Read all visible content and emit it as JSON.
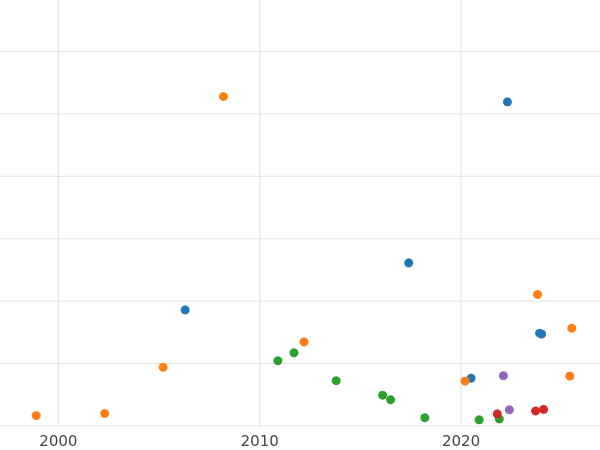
{
  "chart_data": {
    "type": "scatter",
    "title": "",
    "xlabel": "",
    "ylabel": "",
    "xlim": [
      1997.1,
      2026.9
    ],
    "ylim": [
      0,
      100
    ],
    "grid": true,
    "legend": "none",
    "x_ticks": [
      2000,
      2010,
      2020
    ],
    "x_tick_labels": [
      "2000",
      "2010",
      "2020"
    ],
    "y_grid_values": [
      0,
      15,
      30,
      45,
      60,
      75,
      90
    ],
    "series": [
      {
        "color": "#1f77b4",
        "points": [
          {
            "x": 2006.3,
            "y": 27.9
          },
          {
            "x": 2017.4,
            "y": 39.2
          },
          {
            "x": 2020.5,
            "y": 11.5
          },
          {
            "x": 2022.3,
            "y": 77.9
          },
          {
            "x": 2023.9,
            "y": 22.3
          },
          {
            "x": 2024.0,
            "y": 22.1
          }
        ]
      },
      {
        "color": "#ff7f0e",
        "points": [
          {
            "x": 1998.9,
            "y": 2.5
          },
          {
            "x": 2002.3,
            "y": 3.0
          },
          {
            "x": 2005.2,
            "y": 14.1
          },
          {
            "x": 2008.2,
            "y": 79.2
          },
          {
            "x": 2012.2,
            "y": 20.2
          },
          {
            "x": 2020.2,
            "y": 10.8
          },
          {
            "x": 2023.8,
            "y": 31.6
          },
          {
            "x": 2025.5,
            "y": 23.5
          },
          {
            "x": 2025.4,
            "y": 12.0
          }
        ]
      },
      {
        "color": "#2ca02c",
        "points": [
          {
            "x": 2010.9,
            "y": 15.7
          },
          {
            "x": 2011.7,
            "y": 17.6
          },
          {
            "x": 2013.8,
            "y": 10.9
          },
          {
            "x": 2016.1,
            "y": 7.4
          },
          {
            "x": 2016.5,
            "y": 6.3
          },
          {
            "x": 2018.2,
            "y": 2.0
          },
          {
            "x": 2020.9,
            "y": 1.5
          },
          {
            "x": 2021.9,
            "y": 1.7
          }
        ]
      },
      {
        "color": "#d62728",
        "points": [
          {
            "x": 2021.8,
            "y": 2.9
          },
          {
            "x": 2023.7,
            "y": 3.6
          },
          {
            "x": 2024.1,
            "y": 4.0
          }
        ]
      },
      {
        "color": "#9467bd",
        "points": [
          {
            "x": 2022.1,
            "y": 12.1
          },
          {
            "x": 2022.4,
            "y": 3.9
          }
        ]
      }
    ]
  }
}
